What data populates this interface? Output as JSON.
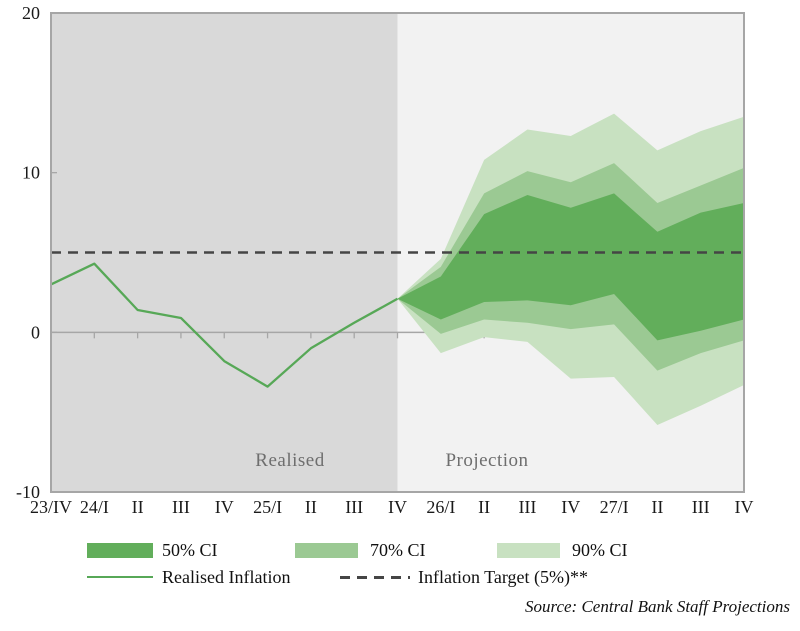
{
  "figure": {
    "region_labels": {
      "realised": "Realised",
      "projection": "Projection"
    },
    "source": "Source: Central Bank Staff Projections",
    "clipped_axis_glyph": "2"
  },
  "legend": {
    "ci50": "50% CI",
    "ci70": "70% CI",
    "ci90": "90% CI",
    "realised_line": "Realised Inflation",
    "target_line": "Inflation Target (5%)**"
  },
  "colors": {
    "band50": "#62ae5b",
    "band70": "#9bc993",
    "band90": "#c8e1c1",
    "realised_line": "#57a857",
    "target_line": "#454545",
    "realised_bg": "#d9d9d9",
    "projection_bg": "#f2f2f2",
    "frame": "#a6a6a6",
    "tick_text": "#1a1a1a"
  },
  "chart_data": {
    "type": "area",
    "subtype": "fan-chart",
    "title": "",
    "xlabel": "",
    "ylabel": "",
    "ylim": [
      -10,
      20
    ],
    "y_ticks": [
      20,
      10,
      0,
      -10
    ],
    "grid": "zero-line-only",
    "x_labels": [
      "23/IV",
      "24/I",
      "II",
      "III",
      "IV",
      "25/I",
      "II",
      "III",
      "IV",
      "26/I",
      "II",
      "III",
      "IV",
      "27/I",
      "II",
      "III",
      "IV"
    ],
    "realised_values": [
      3.0,
      4.3,
      1.4,
      0.9,
      -1.8,
      -3.4,
      -1.0,
      0.6,
      2.1
    ],
    "projection_start_index": 8,
    "inflation_target": 5,
    "bands": {
      "p90_top": [
        2.1,
        4.6,
        10.8,
        12.7,
        12.3,
        13.7,
        11.4,
        12.6,
        13.5
      ],
      "p70_top": [
        2.1,
        4.1,
        8.7,
        10.1,
        9.4,
        10.6,
        8.1,
        9.2,
        10.3
      ],
      "p50_top": [
        2.1,
        3.5,
        7.4,
        8.6,
        7.8,
        8.7,
        6.3,
        7.5,
        8.1
      ],
      "p50_bottom": [
        2.1,
        0.8,
        1.9,
        2.0,
        1.7,
        2.4,
        -0.5,
        0.1,
        0.8
      ],
      "p70_bottom": [
        2.1,
        -0.1,
        0.8,
        0.6,
        0.2,
        0.5,
        -2.4,
        -1.3,
        -0.5
      ],
      "p90_bottom": [
        2.1,
        -1.3,
        -0.3,
        -0.6,
        -2.9,
        -2.8,
        -5.8,
        -4.6,
        -3.3
      ]
    },
    "legend_position": "bottom"
  }
}
